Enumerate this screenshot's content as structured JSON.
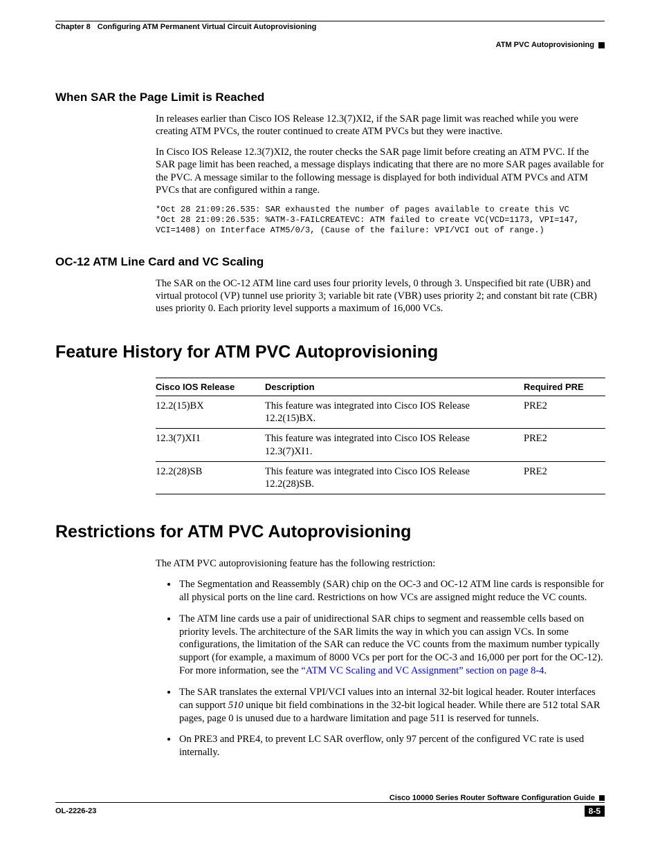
{
  "header": {
    "chapter_label": "Chapter 8",
    "chapter_title": "Configuring ATM Permanent Virtual Circuit Autoprovisioning",
    "section_right": "ATM PVC Autoprovisioning"
  },
  "sec1": {
    "heading": "When SAR the Page Limit is Reached",
    "p1": "In releases earlier than Cisco IOS Release 12.3(7)XI2, if the SAR page limit was reached while you were creating ATM PVCs, the router continued to create ATM PVCs but they were inactive.",
    "p2": "In Cisco IOS Release 12.3(7)XI2, the router checks the SAR page limit before creating an ATM PVC. If the SAR page limit has been reached, a message displays indicating that there are no more SAR pages available for the PVC. A message similar to the following message is displayed for both individual ATM PVCs and ATM PVCs that are configured within a range.",
    "code": "*Oct 28 21:09:26.535: SAR exhausted the number of pages available to create this VC\n*Oct 28 21:09:26.535: %ATM-3-FAILCREATEVC: ATM failed to create VC(VCD=1173, VPI=147,\nVCI=1408) on Interface ATM5/0/3, (Cause of the failure: VPI/VCI out of range.)"
  },
  "sec2": {
    "heading": "OC-12 ATM Line Card and VC Scaling",
    "p1": "The SAR on the OC-12 ATM line card uses four priority levels, 0 through 3. Unspecified bit rate (UBR) and virtual protocol (VP) tunnel use priority 3; variable bit rate (VBR) uses priority 2; and constant bit rate (CBR) uses priority 0. Each priority level supports a maximum of 16,000 VCs."
  },
  "feature": {
    "heading": "Feature History for ATM PVC Autoprovisioning",
    "columns": [
      "Cisco IOS Release",
      "Description",
      "Required PRE"
    ],
    "rows": [
      [
        "12.2(15)BX",
        "This feature was integrated into Cisco IOS Release 12.2(15)BX.",
        "PRE2"
      ],
      [
        "12.3(7)XI1",
        "This feature was integrated into Cisco IOS Release 12.3(7)XI1.",
        "PRE2"
      ],
      [
        "12.2(28)SB",
        "This feature was integrated into Cisco IOS Release 12.2(28)SB.",
        "PRE2"
      ]
    ]
  },
  "restrict": {
    "heading": "Restrictions for ATM PVC Autoprovisioning",
    "intro": "The ATM PVC autoprovisioning feature has the following restriction:",
    "b1": "The Segmentation and Reassembly (SAR) chip on the OC-3 and OC-12 ATM line cards is responsible for all physical ports on the line card. Restrictions on how VCs are assigned might reduce the VC counts.",
    "b2a": "The ATM line cards use a pair of unidirectional SAR chips to segment and reassemble cells based on priority levels. The architecture of the SAR limits the way in which you can assign VCs. In some configurations, the limitation of the SAR can reduce the VC counts from the maximum number typically support (for example, a maximum of 8000 VCs per port for the OC-3 and 16,000 per port for the OC-12). For more information, see the ",
    "b2link": "“ATM VC Scaling and VC Assignment” section on page 8-4",
    "b2b": ".",
    "b3a": "The SAR translates the external VPI/VCI values into an internal 32-bit logical header. Router interfaces can support ",
    "b3italic": "510",
    "b3b": " unique bit field combinations in the 32-bit logical header. While there are 512 total SAR pages, page 0 is unused due to a hardware limitation and page 511 is reserved for tunnels.",
    "b4": "On PRE3 and PRE4, to prevent LC SAR overflow, only 97 percent of the configured VC rate is used internally."
  },
  "footer": {
    "guide": "Cisco 10000 Series Router Software Configuration Guide",
    "doc": "OL-2226-23",
    "page": "8-5"
  }
}
